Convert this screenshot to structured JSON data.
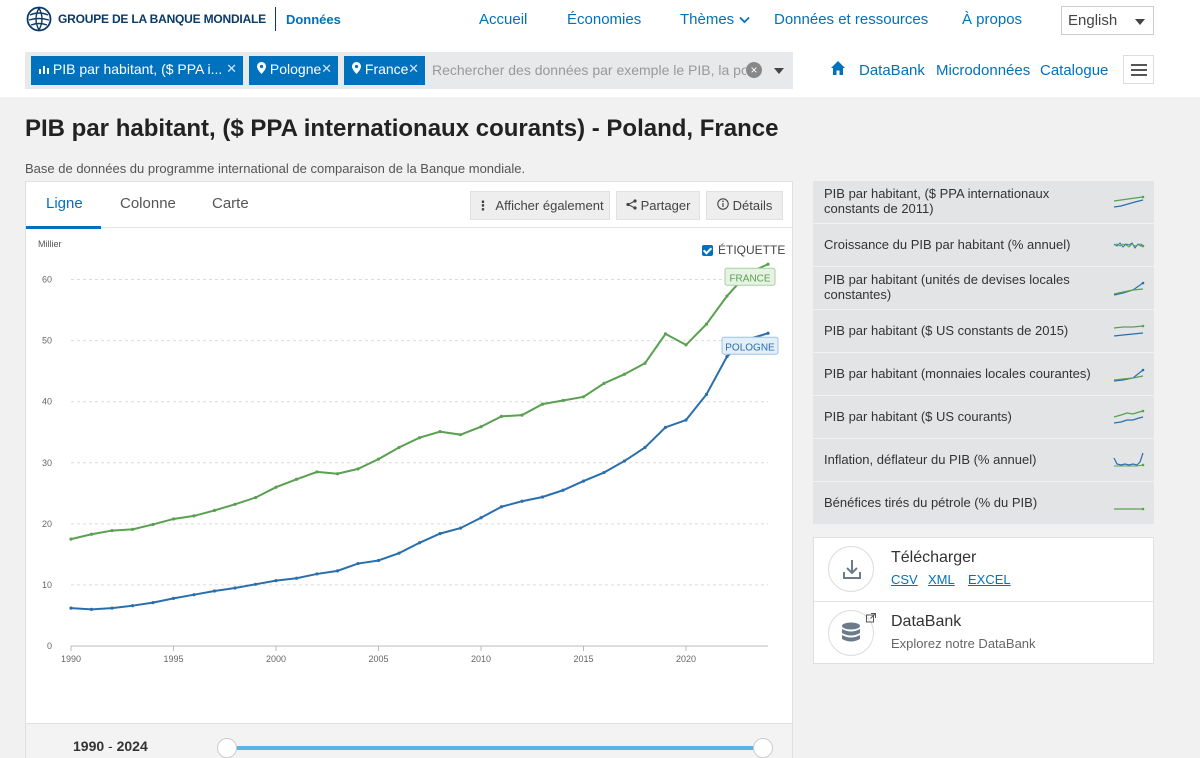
{
  "header": {
    "logo_text": "GROUPE DE LA BANQUE MONDIALE",
    "logo_sub": "Données",
    "nav": [
      "Accueil",
      "Économies",
      "Thèmes",
      "Données et ressources",
      "À propos"
    ],
    "language": "English"
  },
  "search": {
    "chips": [
      "PIB par habitant, ($ PPA i...",
      "Pologne",
      "France"
    ],
    "placeholder": "Rechercher des données par exemple le PIB, la po",
    "links": [
      "DataBank",
      "Microdonnées",
      "Catalogue"
    ]
  },
  "page": {
    "title": "PIB par habitant, ($ PPA internationaux courants) - Poland, France",
    "subtitle": "Base de données du programme international de comparaison de la Banque mondiale."
  },
  "tabs": [
    "Ligne",
    "Colonne",
    "Carte"
  ],
  "tools": [
    "Afficher également",
    "Partager",
    "Détails"
  ],
  "label_toggle": "ÉTIQUETTE",
  "range": {
    "start": "1990",
    "sep": "-",
    "end": "2024"
  },
  "chart_data": {
    "type": "line",
    "ylabel": "Millier",
    "ylim": [
      0,
      65
    ],
    "yticks": [
      0,
      10,
      20,
      30,
      40,
      50,
      60
    ],
    "xticks": [
      1990,
      1995,
      2000,
      2005,
      2010,
      2015,
      2020
    ],
    "grid": true,
    "x": [
      1990,
      1991,
      1992,
      1993,
      1994,
      1995,
      1996,
      1997,
      1998,
      1999,
      2000,
      2001,
      2002,
      2003,
      2004,
      2005,
      2006,
      2007,
      2008,
      2009,
      2010,
      2011,
      2012,
      2013,
      2014,
      2015,
      2016,
      2017,
      2018,
      2019,
      2020,
      2021,
      2022,
      2023,
      2024
    ],
    "series": [
      {
        "name": "FRANCE",
        "color": "#5aa051",
        "values": [
          17.5,
          18.3,
          18.9,
          19.1,
          19.9,
          20.8,
          21.3,
          22.2,
          23.2,
          24.3,
          26.0,
          27.3,
          28.5,
          28.2,
          29.0,
          30.6,
          32.5,
          34.1,
          35.1,
          34.6,
          35.9,
          37.6,
          37.8,
          39.6,
          40.2,
          40.8,
          43.0,
          44.5,
          46.3,
          51.1,
          49.3,
          52.7,
          57.3,
          61.0,
          62.5
        ]
      },
      {
        "name": "POLOGNE",
        "color": "#2a6fad",
        "values": [
          6.2,
          6.0,
          6.2,
          6.6,
          7.1,
          7.8,
          8.4,
          9.0,
          9.5,
          10.1,
          10.7,
          11.1,
          11.8,
          12.3,
          13.5,
          14.0,
          15.2,
          16.9,
          18.4,
          19.3,
          21.0,
          22.8,
          23.7,
          24.4,
          25.5,
          27.0,
          28.4,
          30.3,
          32.5,
          35.8,
          37.0,
          41.2,
          47.4,
          50.2,
          51.2
        ]
      }
    ]
  },
  "indicators": [
    {
      "label": "PIB par habitant, ($ PPA internationaux constants de 2011)",
      "spark": "ppa"
    },
    {
      "label": "Croissance du PIB par habitant (% annuel)",
      "spark": "growth"
    },
    {
      "label": "PIB par habitant (unités de devises locales constantes)",
      "spark": "lcu"
    },
    {
      "label": "PIB par habitant ($ US constants de 2015)",
      "spark": "usd2015"
    },
    {
      "label": "PIB par habitant (monnaies locales courantes)",
      "spark": "lcucur"
    },
    {
      "label": "PIB par habitant ($ US courants)",
      "spark": "usdcur"
    },
    {
      "label": "Inflation, déflateur du PIB (% annuel)",
      "spark": "inflation"
    },
    {
      "label": "Bénéfices tirés du pétrole (% du PIB)",
      "spark": "oil"
    }
  ],
  "download": {
    "title": "Télécharger",
    "formats": [
      "CSV",
      "XML",
      "EXCEL"
    ]
  },
  "databank": {
    "title": "DataBank",
    "desc": "Explorez notre DataBank"
  }
}
